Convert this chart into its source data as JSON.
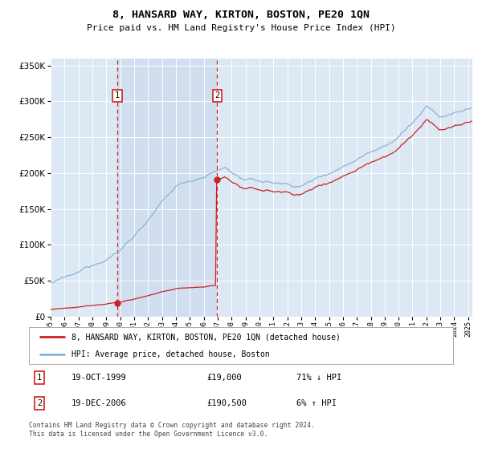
{
  "title": "8, HANSARD WAY, KIRTON, BOSTON, PE20 1QN",
  "subtitle": "Price paid vs. HM Land Registry's House Price Index (HPI)",
  "legend_line1": "8, HANSARD WAY, KIRTON, BOSTON, PE20 1QN (detached house)",
  "legend_line2": "HPI: Average price, detached house, Boston",
  "annotation1_date": "19-OCT-1999",
  "annotation1_price": "£19,000",
  "annotation1_hpi": "71% ↓ HPI",
  "annotation2_date": "19-DEC-2006",
  "annotation2_price": "£190,500",
  "annotation2_hpi": "6% ↑ HPI",
  "footer": "Contains HM Land Registry data © Crown copyright and database right 2024.\nThis data is licensed under the Open Government Licence v3.0.",
  "hpi_color": "#8ab4d4",
  "price_color": "#cc2222",
  "vline_color": "#cc2222",
  "shade_color": "#dce8f4",
  "background_color": "#dce8f4",
  "ylim": [
    0,
    360000
  ],
  "yticks": [
    0,
    50000,
    100000,
    150000,
    200000,
    250000,
    300000,
    350000
  ],
  "sale1_year": 1999.8,
  "sale1_price": 19000,
  "sale2_year": 2006.97,
  "sale2_price": 190500,
  "xlim_start": 1995,
  "xlim_end": 2025.3
}
